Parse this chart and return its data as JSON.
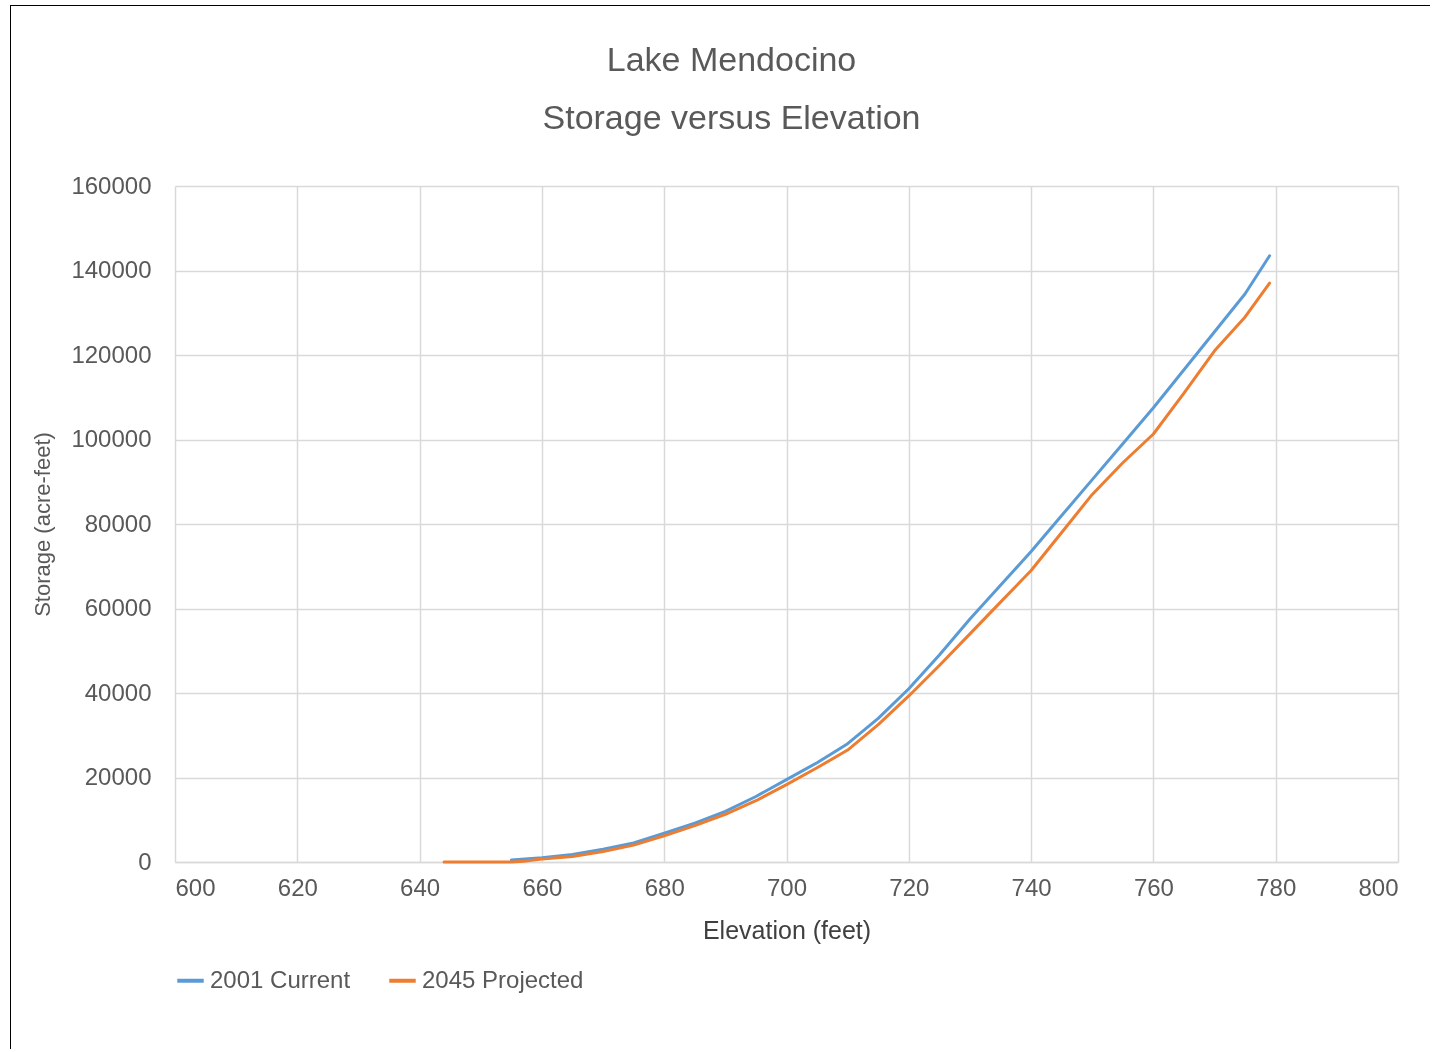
{
  "chart_data": {
    "type": "line",
    "title": "Lake Mendocino\nStorage versus Elevation",
    "xlabel": "Elevation (feet)",
    "ylabel": "Storage (acre-feet)",
    "xlim": [
      600,
      800
    ],
    "xticks": [
      600,
      620,
      640,
      660,
      680,
      700,
      720,
      740,
      760,
      780,
      800
    ],
    "ylim": [
      0,
      160000
    ],
    "yticks": [
      0,
      20000,
      40000,
      60000,
      80000,
      100000,
      120000,
      140000,
      160000
    ],
    "grid": true,
    "legend": "bottom",
    "marker": "none",
    "line_style": "solid",
    "series": [
      {
        "name": "2001 Current",
        "color": "#5b9bd5",
        "x": [
          655,
          660,
          665,
          670,
          675,
          680,
          685,
          690,
          695,
          700,
          705,
          710,
          715,
          720,
          725,
          730,
          735,
          740,
          745,
          750,
          755,
          760,
          765,
          770,
          775,
          779
        ],
        "values": [
          500,
          1000,
          1800,
          3000,
          4500,
          6800,
          9200,
          12000,
          15500,
          19500,
          23500,
          28000,
          34000,
          41000,
          49000,
          57500,
          65500,
          73500,
          82000,
          90500,
          99000,
          107500,
          116500,
          125500,
          134500,
          143500
        ]
      },
      {
        "name": "2045 Projected",
        "color": "#ed7d31",
        "x": [
          644,
          650,
          655,
          657,
          660,
          665,
          670,
          675,
          680,
          685,
          690,
          695,
          700,
          705,
          710,
          715,
          720,
          725,
          730,
          735,
          740,
          745,
          750,
          755,
          760,
          765,
          770,
          775,
          779
        ],
        "values": [
          0,
          0,
          0,
          200,
          700,
          1300,
          2500,
          4000,
          6200,
          8600,
          11300,
          14500,
          18300,
          22300,
          26500,
          32500,
          39300,
          46500,
          54000,
          61500,
          69000,
          78000,
          87000,
          94500,
          101300,
          111000,
          121000,
          129000,
          137000
        ]
      }
    ]
  }
}
